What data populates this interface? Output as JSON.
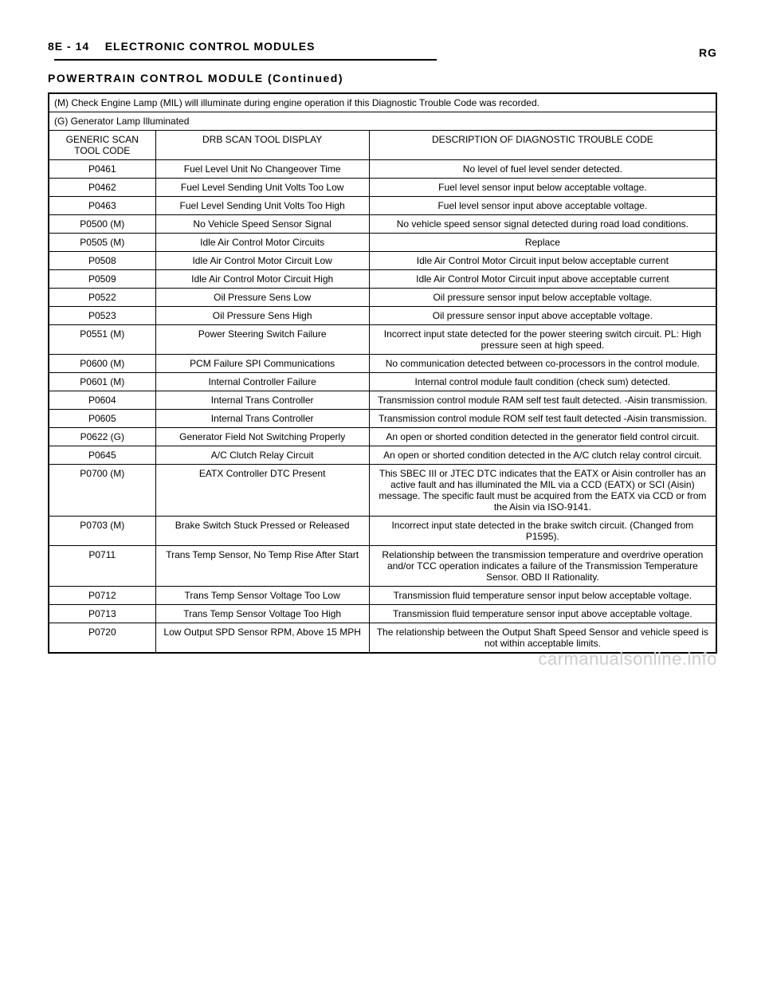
{
  "header": {
    "page_num": "8E - 14",
    "section": "ELECTRONIC CONTROL MODULES",
    "right": "RG",
    "subtitle": "POWERTRAIN CONTROL MODULE (Continued)"
  },
  "table": {
    "note1": "(M) Check Engine Lamp (MIL) will illuminate during engine operation if this Diagnostic Trouble Code was recorded.",
    "note2": "(G) Generator Lamp Illuminated",
    "columns": [
      "GENERIC SCAN TOOL CODE",
      "DRB SCAN TOOL DISPLAY",
      "DESCRIPTION OF DIAGNOSTIC TROUBLE CODE"
    ],
    "rows": [
      [
        "P0461",
        "Fuel Level Unit No Changeover Time",
        "No level of fuel level sender detected."
      ],
      [
        "P0462",
        "Fuel Level Sending Unit Volts Too Low",
        "Fuel level sensor input below acceptable voltage."
      ],
      [
        "P0463",
        "Fuel Level Sending Unit Volts Too High",
        "Fuel level sensor input above acceptable voltage."
      ],
      [
        "P0500 (M)",
        "No Vehicle Speed Sensor Signal",
        "No vehicle speed sensor signal detected during road load conditions."
      ],
      [
        "P0505 (M)",
        "Idle Air Control Motor Circuits",
        "Replace"
      ],
      [
        "P0508",
        "Idle Air Control Motor Circuit Low",
        "Idle Air Control Motor Circuit input below acceptable current"
      ],
      [
        "P0509",
        "Idle Air Control Motor Circuit High",
        "Idle Air Control Motor Circuit input above acceptable current"
      ],
      [
        "P0522",
        "Oil Pressure Sens Low",
        "Oil pressure sensor input below acceptable voltage."
      ],
      [
        "P0523",
        "Oil Pressure Sens High",
        "Oil pressure sensor input above acceptable voltage."
      ],
      [
        "P0551 (M)",
        "Power Steering Switch Failure",
        "Incorrect input state detected for the power steering switch circuit. PL: High pressure seen at high speed."
      ],
      [
        "P0600 (M)",
        "PCM Failure SPI Communications",
        "No communication detected between co-processors in the control module."
      ],
      [
        "P0601 (M)",
        "Internal Controller Failure",
        "Internal control module fault condition (check sum) detected."
      ],
      [
        "P0604",
        "Internal Trans Controller",
        "Transmission control module RAM self test fault detected. -Aisin transmission."
      ],
      [
        "P0605",
        "Internal Trans Controller",
        "Transmission control module ROM self test fault detected -Aisin transmission."
      ],
      [
        "P0622 (G)",
        "Generator Field Not Switching Properly",
        "An open or shorted condition detected in the generator field control circuit."
      ],
      [
        "P0645",
        "A/C Clutch Relay Circuit",
        "An open or shorted condition detected in the A/C clutch relay control circuit."
      ],
      [
        "P0700 (M)",
        "EATX Controller DTC Present",
        "This SBEC III or JTEC DTC indicates that the EATX or Aisin controller has an active fault and has illuminated the MIL via a CCD (EATX) or SCI (Aisin) message. The specific fault must be acquired from the EATX via CCD or from the Aisin via ISO-9141."
      ],
      [
        "P0703 (M)",
        "Brake Switch Stuck Pressed or Released",
        "Incorrect input state detected in the brake switch circuit. (Changed from P1595)."
      ],
      [
        "P0711",
        "Trans Temp Sensor, No Temp Rise After Start",
        "Relationship between the transmission temperature and overdrive operation and/or TCC operation indicates a failure of the Transmission Temperature Sensor. OBD II Rationality."
      ],
      [
        "P0712",
        "Trans Temp Sensor Voltage Too Low",
        "Transmission fluid temperature sensor input below acceptable voltage."
      ],
      [
        "P0713",
        "Trans Temp Sensor Voltage Too High",
        "Transmission fluid temperature sensor input above acceptable voltage."
      ],
      [
        "P0720",
        "Low Output SPD Sensor RPM, Above 15 MPH",
        "The relationship between the Output Shaft Speed Sensor and vehicle speed is not within acceptable limits."
      ]
    ]
  },
  "watermark": "carmanualsonline.info"
}
